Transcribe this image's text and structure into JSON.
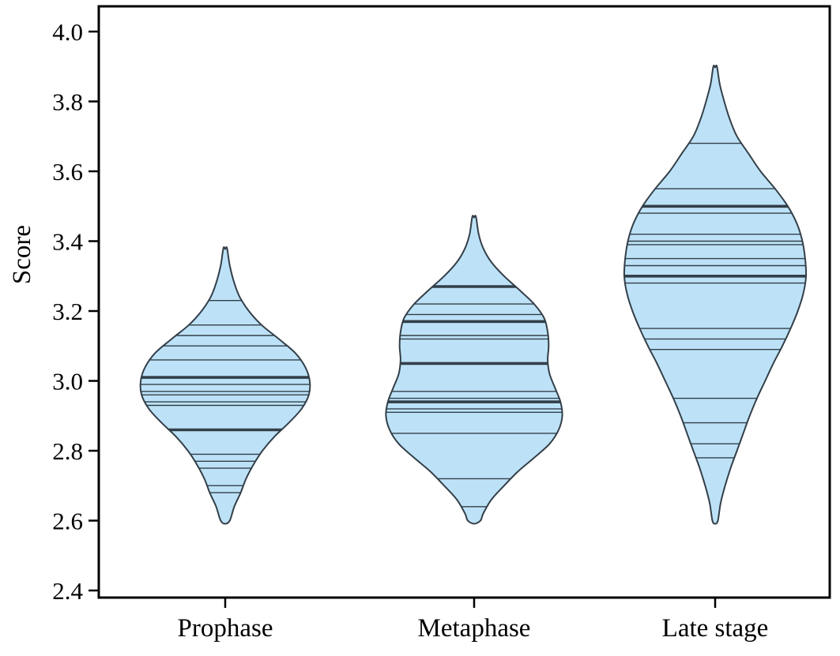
{
  "figure": {
    "background": "#ffffff"
  },
  "colors": {
    "violin_fill": "#bde2f7",
    "violin_stroke": "#333f49",
    "data_line": "#333f49",
    "axis": "#000000"
  },
  "chart_data": {
    "type": "violin",
    "title": "",
    "xlabel": "",
    "ylabel": "Score",
    "ylim": [
      2.4,
      4.0
    ],
    "yticks": [
      2.4,
      2.6,
      2.8,
      3.0,
      3.2,
      3.4,
      3.6,
      3.8,
      4.0
    ],
    "grid": false,
    "legend": false,
    "categories": [
      "Prophase",
      "Metaphase",
      "Late stage"
    ],
    "series": [
      {
        "name": "Prophase",
        "range": [
          2.6,
          3.38
        ],
        "profile": [
          [
            3.38,
            0.02
          ],
          [
            3.33,
            0.05
          ],
          [
            3.28,
            0.1
          ],
          [
            3.24,
            0.16
          ],
          [
            3.2,
            0.26
          ],
          [
            3.16,
            0.4
          ],
          [
            3.12,
            0.59
          ],
          [
            3.08,
            0.77
          ],
          [
            3.04,
            0.88
          ],
          [
            3.0,
            0.93
          ],
          [
            2.96,
            0.92
          ],
          [
            2.92,
            0.84
          ],
          [
            2.88,
            0.7
          ],
          [
            2.84,
            0.54
          ],
          [
            2.8,
            0.41
          ],
          [
            2.76,
            0.31
          ],
          [
            2.72,
            0.23
          ],
          [
            2.68,
            0.17
          ],
          [
            2.64,
            0.1
          ],
          [
            2.6,
            0.05
          ]
        ],
        "data_lines": [
          {
            "value": 3.23,
            "weight": "thin"
          },
          {
            "value": 3.16,
            "weight": "thin"
          },
          {
            "value": 3.13,
            "weight": "thin"
          },
          {
            "value": 3.1,
            "weight": "thin"
          },
          {
            "value": 3.06,
            "weight": "thin"
          },
          {
            "value": 3.01,
            "weight": "thick"
          },
          {
            "value": 2.99,
            "weight": "thin"
          },
          {
            "value": 2.97,
            "weight": "thin"
          },
          {
            "value": 2.96,
            "weight": "thin"
          },
          {
            "value": 2.94,
            "weight": "thin"
          },
          {
            "value": 2.93,
            "weight": "thin"
          },
          {
            "value": 2.86,
            "weight": "thick"
          },
          {
            "value": 2.79,
            "weight": "thin"
          },
          {
            "value": 2.77,
            "weight": "thin"
          },
          {
            "value": 2.75,
            "weight": "thin"
          },
          {
            "value": 2.7,
            "weight": "thin"
          },
          {
            "value": 2.68,
            "weight": "thin"
          }
        ]
      },
      {
        "name": "Metaphase",
        "range": [
          2.6,
          3.47
        ],
        "profile": [
          [
            3.47,
            0.02
          ],
          [
            3.42,
            0.05
          ],
          [
            3.38,
            0.1
          ],
          [
            3.34,
            0.19
          ],
          [
            3.3,
            0.33
          ],
          [
            3.26,
            0.5
          ],
          [
            3.22,
            0.66
          ],
          [
            3.18,
            0.77
          ],
          [
            3.14,
            0.81
          ],
          [
            3.1,
            0.82
          ],
          [
            3.06,
            0.81
          ],
          [
            3.02,
            0.83
          ],
          [
            2.98,
            0.89
          ],
          [
            2.94,
            0.95
          ],
          [
            2.9,
            0.97
          ],
          [
            2.86,
            0.93
          ],
          [
            2.82,
            0.83
          ],
          [
            2.78,
            0.66
          ],
          [
            2.74,
            0.48
          ],
          [
            2.7,
            0.33
          ],
          [
            2.66,
            0.19
          ],
          [
            2.62,
            0.1
          ],
          [
            2.6,
            0.07
          ]
        ],
        "data_lines": [
          {
            "value": 3.27,
            "weight": "thick"
          },
          {
            "value": 3.22,
            "weight": "thin"
          },
          {
            "value": 3.19,
            "weight": "thin"
          },
          {
            "value": 3.17,
            "weight": "thick"
          },
          {
            "value": 3.13,
            "weight": "thin"
          },
          {
            "value": 3.12,
            "weight": "thin"
          },
          {
            "value": 3.05,
            "weight": "thick"
          },
          {
            "value": 2.97,
            "weight": "thin"
          },
          {
            "value": 2.95,
            "weight": "thin"
          },
          {
            "value": 2.94,
            "weight": "thick"
          },
          {
            "value": 2.92,
            "weight": "thin"
          },
          {
            "value": 2.91,
            "weight": "thin"
          },
          {
            "value": 2.85,
            "weight": "thin"
          },
          {
            "value": 2.72,
            "weight": "thin"
          },
          {
            "value": 2.64,
            "weight": "thin"
          }
        ]
      },
      {
        "name": "Late stage",
        "range": [
          2.6,
          3.9
        ],
        "profile": [
          [
            3.9,
            0.02
          ],
          [
            3.85,
            0.05
          ],
          [
            3.8,
            0.1
          ],
          [
            3.75,
            0.16
          ],
          [
            3.7,
            0.24
          ],
          [
            3.65,
            0.37
          ],
          [
            3.6,
            0.5
          ],
          [
            3.55,
            0.66
          ],
          [
            3.5,
            0.8
          ],
          [
            3.45,
            0.9
          ],
          [
            3.4,
            0.96
          ],
          [
            3.35,
            0.99
          ],
          [
            3.3,
            1.0
          ],
          [
            3.25,
            0.97
          ],
          [
            3.2,
            0.91
          ],
          [
            3.15,
            0.83
          ],
          [
            3.1,
            0.74
          ],
          [
            3.05,
            0.64
          ],
          [
            3.0,
            0.55
          ],
          [
            2.95,
            0.46
          ],
          [
            2.9,
            0.38
          ],
          [
            2.85,
            0.31
          ],
          [
            2.8,
            0.24
          ],
          [
            2.75,
            0.17
          ],
          [
            2.7,
            0.11
          ],
          [
            2.65,
            0.06
          ],
          [
            2.6,
            0.03
          ]
        ],
        "data_lines": [
          {
            "value": 3.68,
            "weight": "thin"
          },
          {
            "value": 3.55,
            "weight": "thin"
          },
          {
            "value": 3.5,
            "weight": "thick"
          },
          {
            "value": 3.48,
            "weight": "thin"
          },
          {
            "value": 3.42,
            "weight": "thin"
          },
          {
            "value": 3.4,
            "weight": "thin"
          },
          {
            "value": 3.39,
            "weight": "thin"
          },
          {
            "value": 3.35,
            "weight": "thin"
          },
          {
            "value": 3.33,
            "weight": "thin"
          },
          {
            "value": 3.3,
            "weight": "thick"
          },
          {
            "value": 3.28,
            "weight": "thin"
          },
          {
            "value": 3.15,
            "weight": "thin"
          },
          {
            "value": 3.12,
            "weight": "thin"
          },
          {
            "value": 3.09,
            "weight": "thin"
          },
          {
            "value": 2.95,
            "weight": "thin"
          },
          {
            "value": 2.88,
            "weight": "thin"
          },
          {
            "value": 2.82,
            "weight": "thin"
          },
          {
            "value": 2.78,
            "weight": "thin"
          }
        ]
      }
    ]
  }
}
